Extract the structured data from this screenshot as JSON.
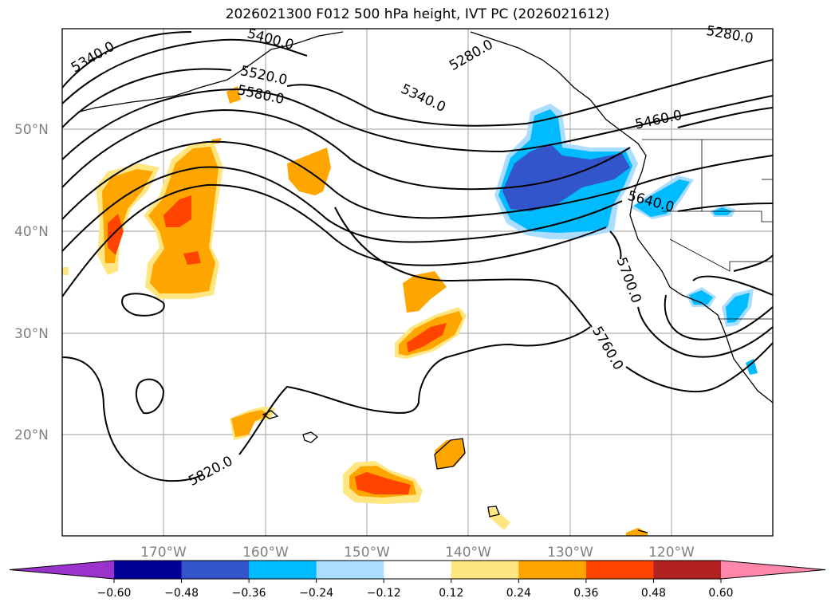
{
  "title": "2026021300 F012 500 hPa height, IVT PC (2026021612)",
  "lat_labels": [
    "50°N",
    "40°N",
    "30°N",
    "20°N"
  ],
  "lon_labels": [
    "170°W",
    "160°W",
    "150°W",
    "140°W",
    "130°W",
    "120°W"
  ],
  "contour_labels": [
    "5280.0",
    "5280.0",
    "5340.0",
    "5340.0",
    "5400.0",
    "5460.0",
    "5520.0",
    "5580.0",
    "5640.0",
    "5700.0",
    "5760.0",
    "5820.0"
  ],
  "colorbar": {
    "ticks": [
      "−0.60",
      "−0.48",
      "−0.36",
      "−0.24",
      "−0.12",
      "0.12",
      "0.24",
      "0.36",
      "0.48",
      "0.60"
    ],
    "colors": [
      "#9933cc",
      "#000099",
      "#3355cc",
      "#00bbff",
      "#aaddff",
      "#ffffff",
      "#ffe680",
      "#ffa500",
      "#ff4400",
      "#b22222",
      "#ff88aa"
    ]
  }
}
